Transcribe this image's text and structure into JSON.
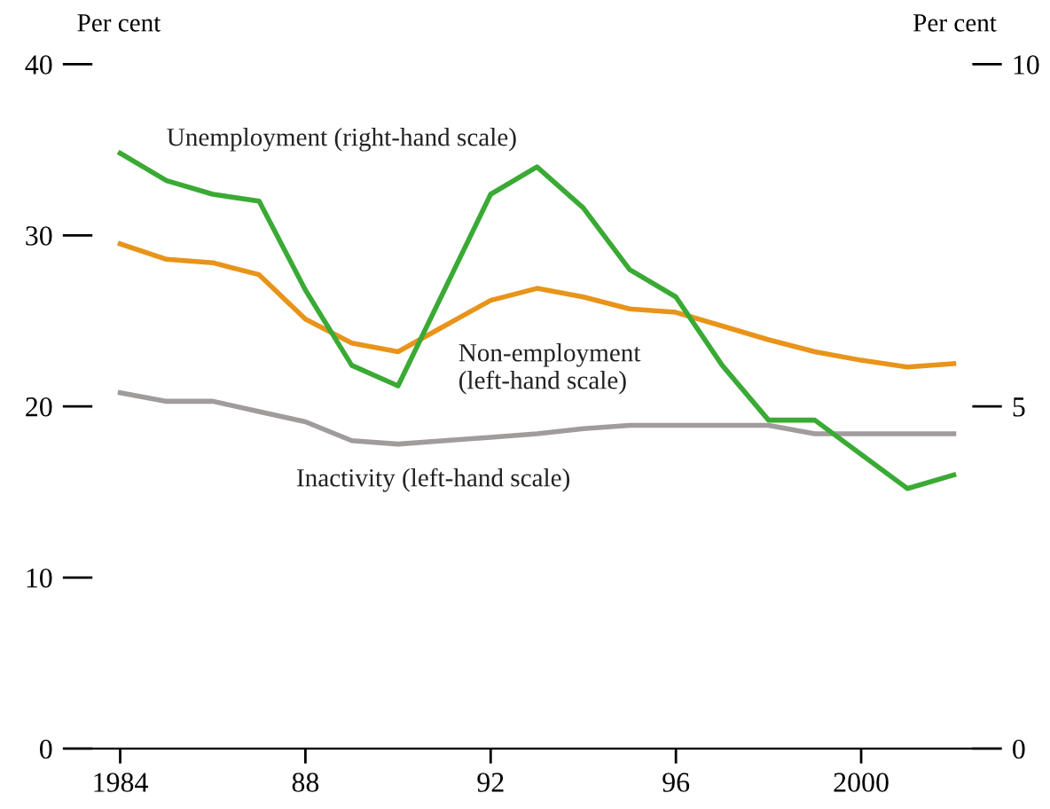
{
  "chart_data": {
    "type": "line",
    "ylabel": "Per cent",
    "y2label": "Per cent",
    "x": [
      1984,
      1985,
      1986,
      1987,
      1988,
      1989,
      1990,
      1991,
      1992,
      1993,
      1994,
      1995,
      1996,
      1997,
      1998,
      1999,
      2000,
      2001,
      2002
    ],
    "series": [
      {
        "name": "Unemployment (right-hand scale)",
        "color": "#3aaa35",
        "axis": "y2",
        "values": [
          8.7,
          8.3,
          8.1,
          8.0,
          6.7,
          5.6,
          5.3,
          6.7,
          8.1,
          8.5,
          7.9,
          7.0,
          6.6,
          5.6,
          4.8,
          4.8,
          4.3,
          3.8,
          4.0
        ]
      },
      {
        "name": "Non-employment\n(left-hand scale)",
        "color": "#e8941a",
        "values": [
          29.5,
          28.6,
          28.4,
          27.7,
          25.1,
          23.7,
          23.2,
          24.7,
          26.2,
          26.9,
          26.4,
          25.7,
          25.5,
          24.7,
          23.9,
          23.2,
          22.7,
          22.3,
          22.5
        ]
      },
      {
        "name": "Inactivity (left-hand scale)",
        "color": "#a09c9c",
        "values": [
          20.8,
          20.3,
          20.3,
          19.7,
          19.1,
          18.0,
          17.8,
          18.0,
          18.2,
          18.4,
          18.7,
          18.9,
          18.9,
          18.9,
          18.9,
          18.4,
          18.4,
          18.4,
          18.4
        ]
      }
    ],
    "xlim": [
      1983.4,
      2002.4
    ],
    "xticks": [
      1984,
      {
        "value": 1988,
        "label": "88"
      },
      {
        "value": 1992,
        "label": "92"
      },
      {
        "value": 1996,
        "label": "96"
      },
      2000
    ],
    "ylim": [
      0,
      40
    ],
    "yticks": [
      0,
      10,
      20,
      30,
      40
    ],
    "y2lim": [
      0,
      10
    ],
    "y2ticks": [
      0,
      5,
      10
    ],
    "grid": false,
    "legend": false,
    "marker": "none",
    "line_style": "solid"
  }
}
